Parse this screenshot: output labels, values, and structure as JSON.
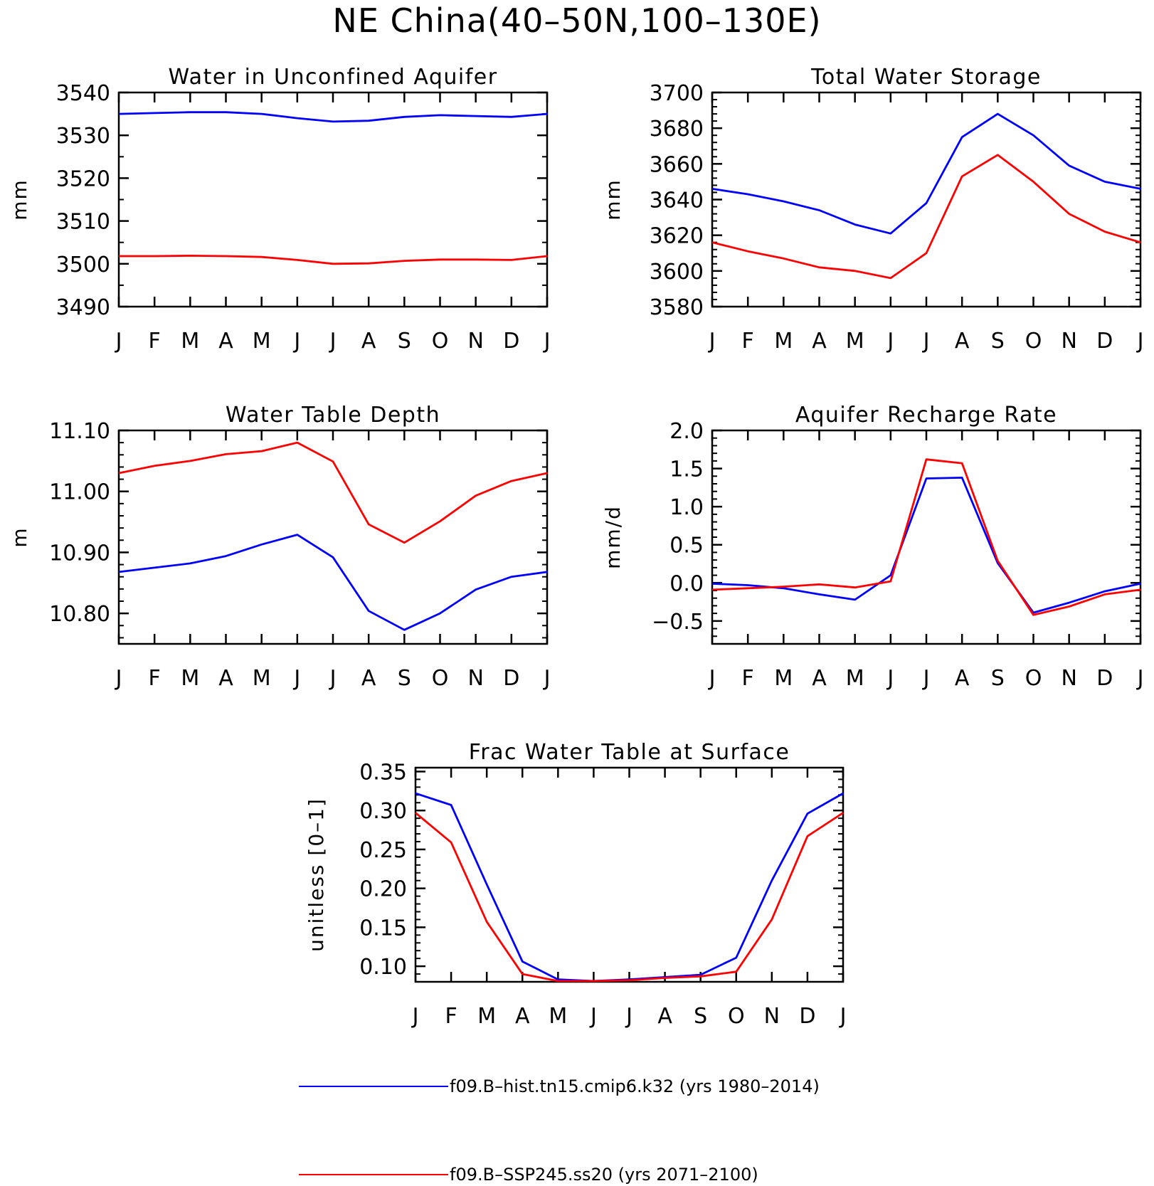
{
  "title": "NE China(40–50N,100–130E)",
  "colors": {
    "hist": "#0000ff",
    "ssp": "#ff0000"
  },
  "legend": [
    {
      "label": "f09.B–hist.tn15.cmip6.k32 (yrs 1980–2014)",
      "color": "#0000ff"
    },
    {
      "label": "f09.B–SSP245.ss20 (yrs 2071–2100)",
      "color": "#ff0000"
    }
  ],
  "chart_data": [
    {
      "type": "line",
      "title": "Water in Unconfined Aquifer",
      "ylabel": "mm",
      "categories": [
        "J",
        "F",
        "M",
        "A",
        "M",
        "J",
        "J",
        "A",
        "S",
        "O",
        "N",
        "D",
        "J"
      ],
      "ylim": [
        3490,
        3540
      ],
      "yticks": [
        3490,
        3500,
        3510,
        3520,
        3530,
        3540
      ],
      "ytick_labels": [
        "3490",
        "3500",
        "3510",
        "3520",
        "3530",
        "3540"
      ],
      "yminor": 2,
      "series": [
        {
          "values": [
            3535.0,
            3535.2,
            3535.4,
            3535.4,
            3535.0,
            3534.0,
            3533.2,
            3533.4,
            3534.3,
            3534.7,
            3534.5,
            3534.3,
            3535.0
          ],
          "color": "#0000ff"
        },
        {
          "values": [
            3501.8,
            3501.8,
            3501.9,
            3501.8,
            3501.6,
            3500.9,
            3500.0,
            3500.1,
            3500.7,
            3501.0,
            3501.0,
            3500.9,
            3501.8
          ],
          "color": "#ff0000"
        }
      ]
    },
    {
      "type": "line",
      "title": "Total Water Storage",
      "ylabel": "mm",
      "categories": [
        "J",
        "F",
        "M",
        "A",
        "M",
        "J",
        "J",
        "A",
        "S",
        "O",
        "N",
        "D",
        "J"
      ],
      "ylim": [
        3580,
        3700
      ],
      "yticks": [
        3580,
        3600,
        3620,
        3640,
        3660,
        3680,
        3700
      ],
      "ytick_labels": [
        "3580",
        "3600",
        "3620",
        "3640",
        "3660",
        "3680",
        "3700"
      ],
      "yminor": 5,
      "series": [
        {
          "values": [
            3646,
            3643,
            3639,
            3634,
            3626,
            3621,
            3638,
            3675,
            3688,
            3676,
            3659,
            3650,
            3646
          ],
          "color": "#0000ff"
        },
        {
          "values": [
            3616,
            3611,
            3607,
            3602,
            3600,
            3596,
            3610,
            3653,
            3665,
            3650,
            3632,
            3622,
            3616
          ],
          "color": "#ff0000"
        }
      ]
    },
    {
      "type": "line",
      "title": "Water Table Depth",
      "ylabel": "m",
      "categories": [
        "J",
        "F",
        "M",
        "A",
        "M",
        "J",
        "J",
        "A",
        "S",
        "O",
        "N",
        "D",
        "J"
      ],
      "ylim": [
        10.75,
        11.1
      ],
      "yticks": [
        10.8,
        10.9,
        11.0,
        11.1
      ],
      "ytick_labels": [
        "10.80",
        "10.90",
        "11.00",
        "11.10"
      ],
      "yminor": 5,
      "series": [
        {
          "values": [
            10.868,
            10.875,
            10.882,
            10.894,
            10.913,
            10.929,
            10.892,
            10.804,
            10.773,
            10.8,
            10.839,
            10.86,
            10.868
          ],
          "color": "#0000ff"
        },
        {
          "values": [
            11.03,
            11.042,
            11.05,
            11.061,
            11.066,
            11.08,
            11.049,
            10.946,
            10.916,
            10.951,
            10.993,
            11.017,
            11.03
          ],
          "color": "#ff0000"
        }
      ]
    },
    {
      "type": "line",
      "title": "Aquifer Recharge Rate",
      "ylabel": "mm/d",
      "categories": [
        "J",
        "F",
        "M",
        "A",
        "M",
        "J",
        "J",
        "A",
        "S",
        "O",
        "N",
        "D",
        "J"
      ],
      "ylim": [
        -0.8,
        2.0
      ],
      "yticks": [
        -0.5,
        0.0,
        0.5,
        1.0,
        1.5,
        2.0
      ],
      "ytick_labels": [
        "−0.5",
        "0.0",
        "0.5",
        "1.0",
        "1.5",
        "2.0"
      ],
      "yminor": 5,
      "series": [
        {
          "values": [
            -0.01,
            -0.03,
            -0.07,
            -0.15,
            -0.22,
            0.1,
            1.37,
            1.38,
            0.26,
            -0.39,
            -0.26,
            -0.11,
            -0.01
          ],
          "color": "#0000ff"
        },
        {
          "values": [
            -0.09,
            -0.07,
            -0.05,
            -0.02,
            -0.06,
            0.02,
            1.62,
            1.57,
            0.29,
            -0.42,
            -0.31,
            -0.15,
            -0.09
          ],
          "color": "#ff0000"
        }
      ]
    },
    {
      "type": "line",
      "title": "Frac Water Table at Surface",
      "ylabel": "unitless [0–1]",
      "categories": [
        "J",
        "F",
        "M",
        "A",
        "M",
        "J",
        "J",
        "A",
        "S",
        "O",
        "N",
        "D",
        "J"
      ],
      "ylim": [
        0.08,
        0.355
      ],
      "yticks": [
        0.1,
        0.15,
        0.2,
        0.25,
        0.3,
        0.35
      ],
      "ytick_labels": [
        "0.10",
        "0.15",
        "0.20",
        "0.25",
        "0.30",
        "0.35"
      ],
      "yminor": 5,
      "series": [
        {
          "values": [
            0.322,
            0.307,
            0.205,
            0.106,
            0.083,
            0.081,
            0.083,
            0.086,
            0.089,
            0.111,
            0.21,
            0.296,
            0.322
          ],
          "color": "#0000ff"
        },
        {
          "values": [
            0.297,
            0.259,
            0.157,
            0.09,
            0.081,
            0.081,
            0.082,
            0.085,
            0.087,
            0.093,
            0.16,
            0.267,
            0.297
          ],
          "color": "#ff0000"
        }
      ]
    }
  ]
}
